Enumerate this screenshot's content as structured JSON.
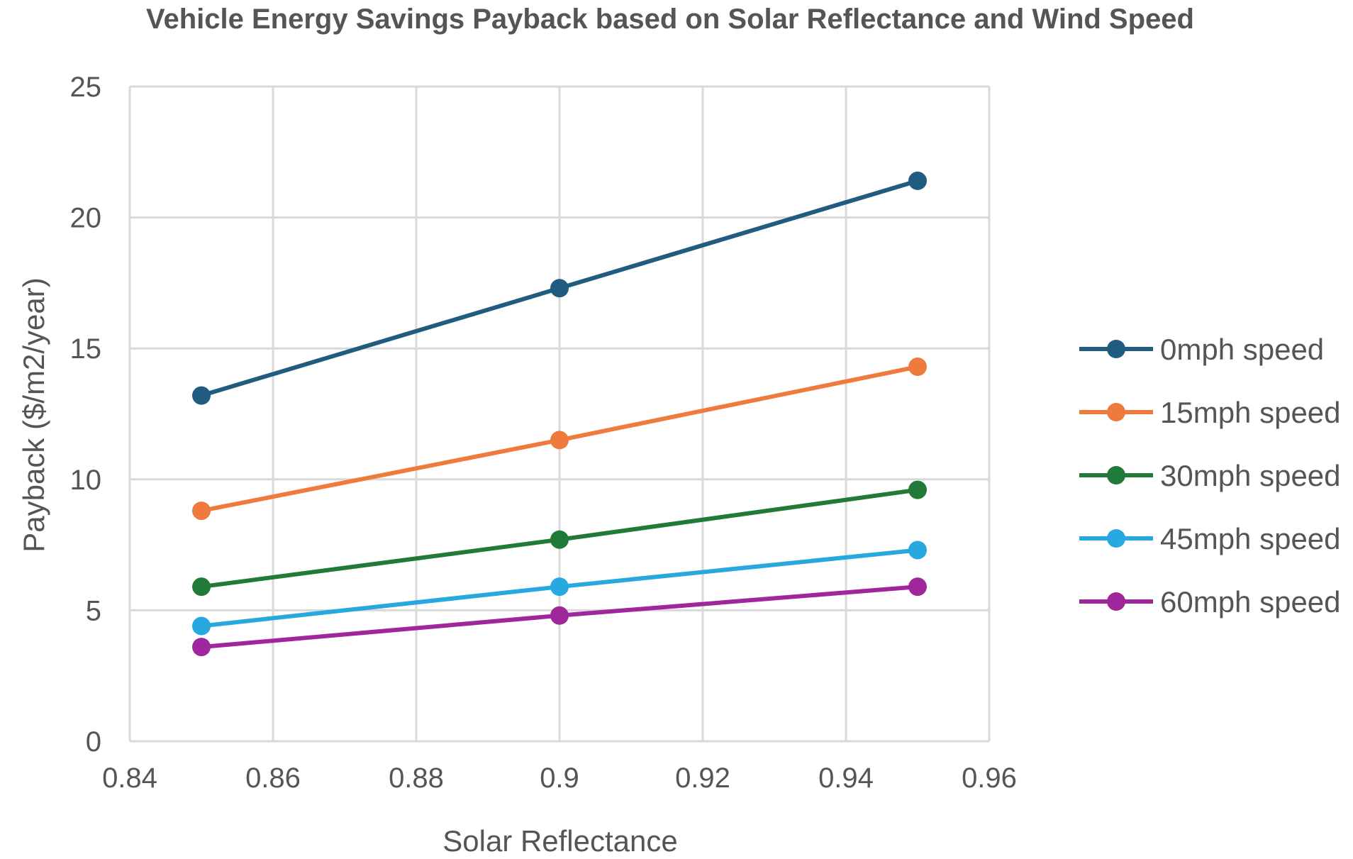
{
  "chart_data": {
    "type": "line",
    "title": "Vehicle Energy Savings Payback based on  Solar Reflectance and Wind Speed",
    "xlabel": "Solar Reflectance",
    "ylabel": "Payback ($/m2/year)",
    "xlim": [
      0.84,
      0.96
    ],
    "ylim": [
      0,
      25
    ],
    "x_ticks": [
      "0.84",
      "0.86",
      "0.88",
      "0.9",
      "0.92",
      "0.94",
      "0.96"
    ],
    "y_ticks": [
      "0",
      "5",
      "10",
      "15",
      "20",
      "25"
    ],
    "grid": true,
    "legend_position": "right",
    "x": [
      0.85,
      0.9,
      0.95
    ],
    "series": [
      {
        "name": "0mph speed",
        "color": "#1f5c7f",
        "values": [
          13.2,
          17.3,
          21.4
        ]
      },
      {
        "name": "15mph speed",
        "color": "#ef7a3d",
        "values": [
          8.8,
          11.5,
          14.3
        ]
      },
      {
        "name": "30mph speed",
        "color": "#217a38",
        "values": [
          5.9,
          7.7,
          9.6
        ]
      },
      {
        "name": "45mph speed",
        "color": "#27a8de",
        "values": [
          4.4,
          5.9,
          7.3
        ]
      },
      {
        "name": "60mph speed",
        "color": "#a0269b",
        "values": [
          3.6,
          4.8,
          5.9
        ]
      }
    ]
  }
}
